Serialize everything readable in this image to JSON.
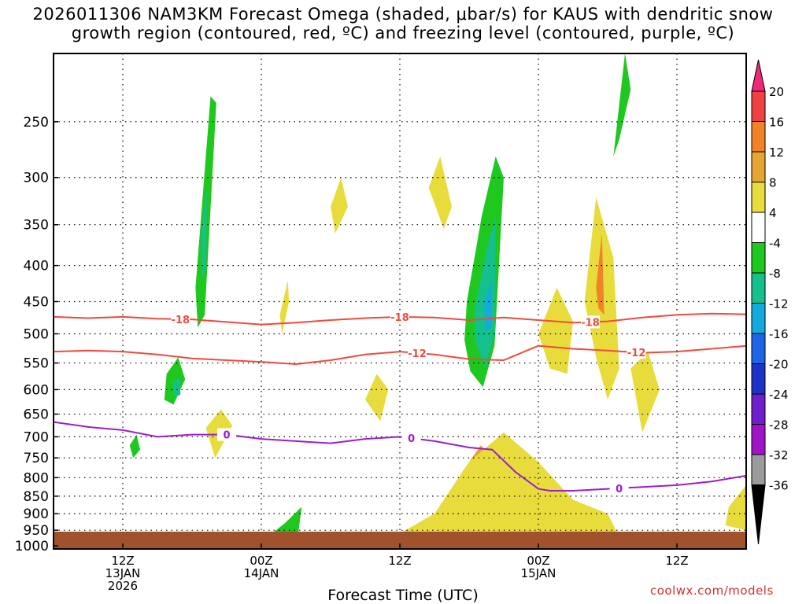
{
  "chart_data": {
    "type": "heatmap",
    "title_line1": "2026011306 NAM3KM Forecast Omega (shaded, μbar/s) for KAUS with dendritic snow",
    "title_line2": "growth region (contoured, red, ºC) and freezing level (contoured, purple, ºC)",
    "xlabel": "Forecast Time (UTC)",
    "credit": "coolwx.com/models",
    "x_range_hours": [
      0,
      60
    ],
    "y_range_hpa": [
      1010,
      200
    ],
    "x_ticks": [
      {
        "hour": 6,
        "lines": [
          "12Z",
          "13JAN",
          "2026"
        ]
      },
      {
        "hour": 18,
        "lines": [
          "00Z",
          "14JAN"
        ]
      },
      {
        "hour": 30,
        "lines": [
          "12Z"
        ]
      },
      {
        "hour": 42,
        "lines": [
          "00Z",
          "15JAN"
        ]
      },
      {
        "hour": 54,
        "lines": [
          "12Z"
        ]
      }
    ],
    "y_ticks": [
      250,
      300,
      350,
      400,
      450,
      500,
      550,
      600,
      650,
      700,
      750,
      800,
      850,
      900,
      950,
      1000
    ],
    "colorbar": {
      "levels": [
        "20",
        "16",
        "12",
        "8",
        "4",
        "-4",
        "-8",
        "-12",
        "-16",
        "-20",
        "-24",
        "-28",
        "-32",
        "-36"
      ],
      "colors": [
        "#f0287a",
        "#f04040",
        "#f08228",
        "#e6a532",
        "#e8dc3c",
        "#ffffff",
        "#1ec81e",
        "#14c08c",
        "#14aadc",
        "#1e64e6",
        "#1e32c8",
        "#6e1ecc",
        "#a014c8",
        "#9b9b9b",
        "#000000"
      ]
    },
    "contours": [
      {
        "name": "-18C",
        "label": "-18",
        "color": "#f04a3c",
        "x": [
          0,
          3,
          6,
          9,
          12,
          15,
          18,
          21,
          24,
          27,
          30,
          33,
          36,
          39,
          42,
          45,
          48,
          51,
          54,
          57,
          60
        ],
        "y": [
          473,
          475,
          473,
          476,
          477,
          481,
          485,
          482,
          478,
          475,
          473,
          474,
          478,
          474,
          478,
          482,
          480,
          474,
          470,
          468,
          469
        ],
        "label_hours": [
          11,
          30,
          46.5
        ]
      },
      {
        "name": "-12C",
        "label": "-12",
        "color": "#f04a3c",
        "x": [
          0,
          3,
          6,
          9,
          12,
          15,
          18,
          21,
          24,
          27,
          30,
          33,
          36,
          39,
          42,
          45,
          48,
          51,
          54,
          57,
          60
        ],
        "y": [
          530,
          528,
          530,
          535,
          542,
          545,
          548,
          552,
          545,
          535,
          530,
          535,
          543,
          545,
          520,
          525,
          528,
          532,
          530,
          525,
          520
        ],
        "label_hours": [
          31.5,
          50.5
        ]
      },
      {
        "name": "0C",
        "label": "0",
        "color": "#9b1ecc",
        "x": [
          0,
          3,
          6,
          9,
          12,
          15,
          18,
          21,
          24,
          27,
          30,
          33,
          36,
          38,
          40,
          42,
          43,
          45,
          48,
          51,
          54,
          57,
          60
        ],
        "y": [
          667,
          678,
          685,
          700,
          695,
          695,
          705,
          710,
          715,
          705,
          700,
          710,
          725,
          730,
          785,
          830,
          835,
          835,
          830,
          825,
          820,
          810,
          795
        ],
        "label_hours": [
          15,
          31,
          49
        ]
      }
    ],
    "shaded_regions": [
      {
        "omega": -8,
        "color": "#1ec81e",
        "x": [
          12.3,
          13.6,
          14.1,
          13.1,
          12.5
        ],
        "p": [
          430,
          230,
          235,
          470,
          490
        ]
      },
      {
        "omega": -12,
        "color": "#14c08c",
        "x": [
          12.8,
          13.3,
          13.2,
          12.9
        ],
        "p": [
          360,
          310,
          400,
          420
        ]
      },
      {
        "omega": -8,
        "color": "#1ec81e",
        "x": [
          35.8,
          37.1,
          38.3,
          39.0,
          38.2,
          37.2,
          36.1,
          35.6
        ],
        "p": [
          450,
          340,
          280,
          300,
          520,
          595,
          565,
          510
        ]
      },
      {
        "omega": -12,
        "color": "#14c08c",
        "x": [
          36.5,
          37.5,
          38.3,
          38.2,
          37.4,
          36.5
        ],
        "p": [
          460,
          380,
          340,
          500,
          560,
          510
        ]
      },
      {
        "omega": -16,
        "color": "#14aadc",
        "x": [
          37.3,
          38.0,
          37.9,
          37.4
        ],
        "p": [
          450,
          420,
          490,
          495
        ]
      },
      {
        "omega": 8,
        "color": "#e6a532",
        "x": [
          35.3,
          37.0,
          38.5,
          39.0,
          38.0,
          36.0,
          34.5,
          34.0
        ],
        "p": [
          790,
          720,
          760,
          900,
          960,
          965,
          930,
          870
        ]
      },
      {
        "omega": 12,
        "color": "#f08228",
        "x": [
          35.6,
          36.4,
          37.0,
          36.6,
          35.7
        ],
        "p": [
          870,
          830,
          850,
          900,
          910
        ]
      },
      {
        "omega": 4,
        "color": "#e8dc3c",
        "x": [
          30.0,
          33.0,
          36.0,
          39.0,
          42.0,
          45.0,
          48.0,
          49.0,
          46.0,
          40.0,
          33.0,
          30.0
        ],
        "p": [
          960,
          900,
          760,
          690,
          760,
          860,
          900,
          970,
          990,
          995,
          990,
          985
        ]
      },
      {
        "omega": -8,
        "color": "#1ec81e",
        "x": [
          18.2,
          20.0,
          21.5,
          21.2,
          19.5,
          18.1
        ],
        "p": [
          980,
          930,
          880,
          960,
          985,
          990
        ]
      },
      {
        "omega": 4,
        "color": "#e8dc3c",
        "x": [
          42.0,
          43.6,
          45.0,
          44.5,
          43.0
        ],
        "p": [
          500,
          430,
          480,
          570,
          560
        ]
      },
      {
        "omega": 4,
        "color": "#e8dc3c",
        "x": [
          46.0,
          47.0,
          48.5,
          49.0,
          48.0,
          47.0
        ],
        "p": [
          450,
          320,
          390,
          560,
          620,
          540
        ]
      },
      {
        "omega": 12,
        "color": "#f08228",
        "x": [
          47.0,
          47.5,
          47.7,
          47.2
        ],
        "p": [
          430,
          360,
          470,
          460
        ]
      },
      {
        "omega": 4,
        "color": "#e8dc3c",
        "x": [
          32.5,
          33.5,
          34.5,
          33.8
        ],
        "p": [
          310,
          280,
          330,
          355
        ]
      },
      {
        "omega": 4,
        "color": "#e8dc3c",
        "x": [
          27.0,
          28.0,
          29.0,
          28.3
        ],
        "p": [
          620,
          570,
          600,
          665
        ]
      },
      {
        "omega": 4,
        "color": "#e8dc3c",
        "x": [
          50.0,
          51.5,
          52.5,
          51.0
        ],
        "p": [
          560,
          530,
          600,
          690
        ]
      },
      {
        "omega": 4,
        "color": "#e8dc3c",
        "x": [
          13.2,
          14.5,
          15.5,
          14.0
        ],
        "p": [
          680,
          640,
          675,
          750
        ]
      },
      {
        "omega": -8,
        "color": "#1ec81e",
        "x": [
          9.8,
          10.8,
          11.4,
          10.4,
          9.6
        ],
        "p": [
          570,
          540,
          580,
          630,
          620
        ]
      },
      {
        "omega": -12,
        "color": "#14c08c",
        "x": [
          10.3,
          10.9,
          11.0,
          10.5
        ],
        "p": [
          590,
          575,
          610,
          615
        ]
      },
      {
        "omega": -8,
        "color": "#1ec81e",
        "x": [
          48.5,
          49.5,
          50.0,
          49.0
        ],
        "p": [
          280,
          200,
          225,
          265
        ]
      },
      {
        "omega": -8,
        "color": "#1ec81e",
        "x": [
          6.6,
          7.2,
          7.5,
          6.9
        ],
        "p": [
          720,
          695,
          730,
          750
        ]
      },
      {
        "omega": 4,
        "color": "#e8dc3c",
        "x": [
          58.5,
          60.0,
          60.0,
          58.2
        ],
        "p": [
          880,
          820,
          950,
          935
        ]
      },
      {
        "omega": 4,
        "color": "#e8dc3c",
        "x": [
          24.0,
          24.9,
          25.5,
          24.4
        ],
        "p": [
          330,
          300,
          330,
          360
        ]
      },
      {
        "omega": 4,
        "color": "#e8dc3c",
        "x": [
          19.6,
          20.3,
          20.4,
          19.8
        ],
        "p": [
          470,
          420,
          450,
          500
        ]
      }
    ]
  }
}
